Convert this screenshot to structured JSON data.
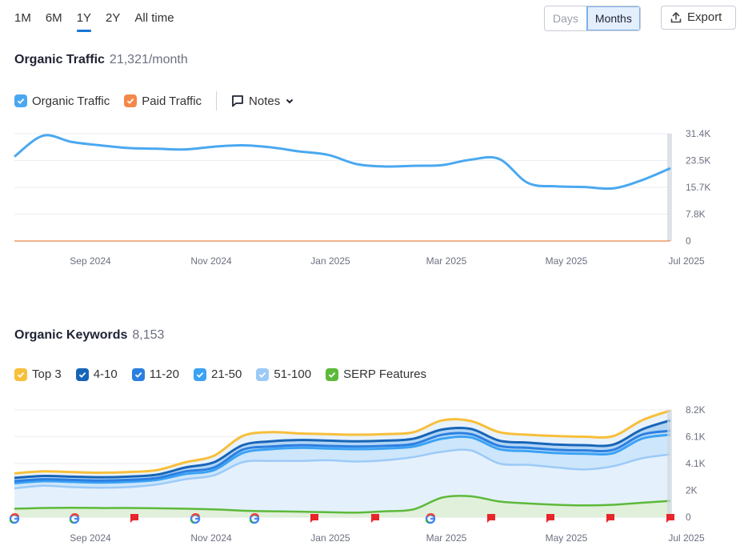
{
  "period_tabs": [
    {
      "label": "1M",
      "active": false
    },
    {
      "label": "6M",
      "active": false
    },
    {
      "label": "1Y",
      "active": true
    },
    {
      "label": "2Y",
      "active": false
    },
    {
      "label": "All time",
      "active": false
    }
  ],
  "granularity": {
    "days": "Days",
    "months": "Months",
    "selected": "Months"
  },
  "export_label": "Export",
  "traffic": {
    "title": "Organic Traffic",
    "value": "21,321/month",
    "legend": {
      "organic": "Organic Traffic",
      "paid": "Paid Traffic",
      "notes": "Notes"
    }
  },
  "keywords": {
    "title": "Organic Keywords",
    "value": "8,153",
    "legend": [
      "Top 3",
      "4-10",
      "11-20",
      "21-50",
      "51-100",
      "SERP Features"
    ]
  },
  "colors": {
    "organic": "#4aa8f0",
    "paid": "#f4884a",
    "top3": "#f7bf3a",
    "k4_10": "#1765b8",
    "k11_20": "#2b7fe0",
    "k21_50": "#3ba2f5",
    "k51_100": "#9ccaf7",
    "serp": "#5db93a"
  },
  "x_axis_labels": [
    "Sep 2024",
    "Nov 2024",
    "Jan 2025",
    "Mar 2025",
    "May 2025",
    "Jul 2025"
  ],
  "chart_data": [
    {
      "type": "line",
      "title": "Organic Traffic",
      "x": [
        "2024-08-01",
        "2024-08-15",
        "2024-09-01",
        "2024-09-15",
        "2024-10-01",
        "2024-10-15",
        "2024-11-01",
        "2024-11-15",
        "2024-12-01",
        "2024-12-15",
        "2025-01-01",
        "2025-01-15",
        "2025-02-01",
        "2025-02-15",
        "2025-03-01",
        "2025-03-15",
        "2025-04-01",
        "2025-04-15",
        "2025-05-01",
        "2025-05-15",
        "2025-06-01",
        "2025-06-15",
        "2025-07-01",
        "2025-07-15"
      ],
      "y_ticks": [
        "31.4K",
        "23.5K",
        "15.7K",
        "7.8K",
        "0"
      ],
      "ylim": [
        0,
        31400
      ],
      "series": [
        {
          "name": "Organic Traffic",
          "values": [
            24700,
            30800,
            29000,
            28000,
            27200,
            27000,
            26800,
            27600,
            28000,
            27400,
            26200,
            25200,
            22500,
            21800,
            22000,
            22200,
            23800,
            24000,
            17000,
            16000,
            15800,
            15400,
            17800,
            21300
          ]
        },
        {
          "name": "Paid Traffic",
          "values": [
            0,
            0,
            0,
            0,
            0,
            0,
            0,
            0,
            0,
            0,
            0,
            0,
            0,
            0,
            0,
            0,
            0,
            0,
            0,
            0,
            0,
            0,
            0,
            0
          ]
        }
      ]
    },
    {
      "type": "area",
      "title": "Organic Keywords",
      "x": [
        "2024-08-01",
        "2024-08-15",
        "2024-09-01",
        "2024-09-15",
        "2024-10-01",
        "2024-10-15",
        "2024-11-01",
        "2024-11-15",
        "2024-12-01",
        "2024-12-15",
        "2025-01-01",
        "2025-01-15",
        "2025-02-01",
        "2025-02-15",
        "2025-03-01",
        "2025-03-15",
        "2025-04-01",
        "2025-04-15",
        "2025-05-01",
        "2025-05-15",
        "2025-06-01",
        "2025-06-15",
        "2025-07-01",
        "2025-07-15"
      ],
      "y_ticks": [
        "8.2K",
        "6.1K",
        "4.1K",
        "2K",
        "0"
      ],
      "ylim": [
        0,
        8200
      ],
      "stacked_cumulative": true,
      "series": [
        {
          "name": "51-100",
          "values": [
            2200,
            2400,
            2300,
            2250,
            2300,
            2500,
            2900,
            3200,
            4200,
            4300,
            4300,
            4350,
            4250,
            4350,
            4600,
            5000,
            5100,
            4100,
            4000,
            3800,
            3650,
            3900,
            4500,
            4800
          ]
        },
        {
          "name": "21-50",
          "values": [
            2600,
            2750,
            2700,
            2650,
            2700,
            2850,
            3300,
            3600,
            4900,
            5200,
            5300,
            5250,
            5200,
            5250,
            5400,
            6000,
            6100,
            5200,
            5050,
            4900,
            4850,
            4900,
            6000,
            6300
          ]
        },
        {
          "name": "11-20",
          "values": [
            2750,
            2900,
            2850,
            2800,
            2850,
            3000,
            3500,
            3800,
            5150,
            5400,
            5500,
            5450,
            5400,
            5450,
            5600,
            6300,
            6350,
            5450,
            5300,
            5150,
            5100,
            5150,
            6300,
            6600
          ]
        },
        {
          "name": "4-10",
          "values": [
            3000,
            3150,
            3100,
            3050,
            3100,
            3250,
            3800,
            4200,
            5500,
            5800,
            5900,
            5850,
            5800,
            5850,
            6000,
            6700,
            6750,
            5850,
            5700,
            5550,
            5500,
            5550,
            6700,
            7400
          ]
        },
        {
          "name": "Top 3",
          "values": [
            3350,
            3500,
            3450,
            3400,
            3450,
            3600,
            4200,
            4700,
            6200,
            6500,
            6400,
            6350,
            6300,
            6350,
            6500,
            7400,
            7350,
            6500,
            6300,
            6200,
            6150,
            6200,
            7400,
            8150
          ]
        },
        {
          "name": "SERP Features",
          "values": [
            650,
            700,
            720,
            700,
            700,
            680,
            650,
            600,
            500,
            450,
            420,
            380,
            350,
            450,
            600,
            1500,
            1600,
            1200,
            1050,
            950,
            900,
            950,
            1100,
            1250
          ]
        }
      ],
      "markers": [
        "google",
        "google",
        "flag",
        "google",
        "google",
        "flag",
        "flag",
        "google",
        "flag",
        "flag",
        "flag",
        "flag"
      ]
    }
  ]
}
